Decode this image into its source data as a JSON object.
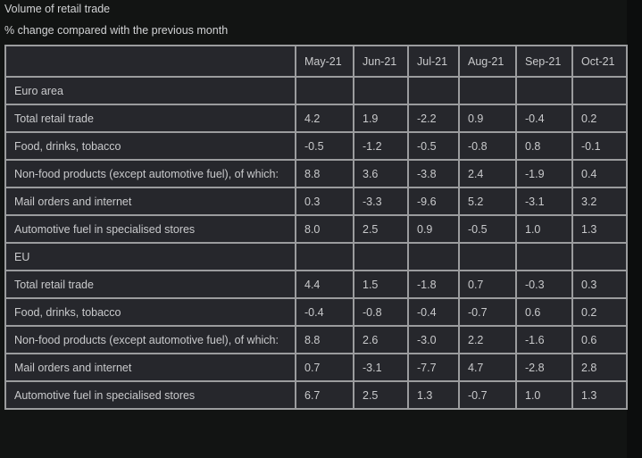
{
  "title": "Volume of retail trade",
  "subtitle": "% change compared with the previous month",
  "table": {
    "columns": [
      "",
      "May-21",
      "Jun-21",
      "Jul-21",
      "Aug-21",
      "Sep-21",
      "Oct-21"
    ],
    "rows": [
      {
        "label": "Euro area",
        "values": [
          "",
          "",
          "",
          "",
          "",
          ""
        ],
        "section": true
      },
      {
        "label": "Total retail trade",
        "values": [
          "4.2",
          "1.9",
          "-2.2",
          "0.9",
          "-0.4",
          "0.2"
        ]
      },
      {
        "label": "Food, drinks, tobacco",
        "values": [
          "-0.5",
          "-1.2",
          "-0.5",
          "-0.8",
          "0.8",
          "-0.1"
        ]
      },
      {
        "label": "Non-food products (except automotive fuel), of which:",
        "values": [
          "8.8",
          "3.6",
          "-3.8",
          "2.4",
          "-1.9",
          "0.4"
        ]
      },
      {
        "label": "Mail orders and internet",
        "values": [
          "0.3",
          "-3.3",
          "-9.6",
          "5.2",
          "-3.1",
          "3.2"
        ]
      },
      {
        "label": "Automotive fuel in specialised stores",
        "values": [
          "8.0",
          "2.5",
          "0.9",
          "-0.5",
          "1.0",
          "1.3"
        ]
      },
      {
        "label": "EU",
        "values": [
          "",
          "",
          "",
          "",
          "",
          ""
        ],
        "section": true
      },
      {
        "label": "Total retail trade",
        "values": [
          "4.4",
          "1.5",
          "-1.8",
          "0.7",
          "-0.3",
          "0.3"
        ]
      },
      {
        "label": "Food, drinks, tobacco",
        "values": [
          "-0.4",
          "-0.8",
          "-0.4",
          "-0.7",
          "0.6",
          "0.2"
        ]
      },
      {
        "label": "Non-food products (except automotive fuel), of which:",
        "values": [
          "8.8",
          "2.6",
          "-3.0",
          "2.2",
          "-1.6",
          "0.6"
        ]
      },
      {
        "label": "Mail orders and internet",
        "values": [
          "0.7",
          "-3.1",
          "-7.7",
          "4.7",
          "-2.8",
          "2.8"
        ]
      },
      {
        "label": "Automotive fuel in specialised stores",
        "values": [
          "6.7",
          "2.5",
          "1.3",
          "-0.7",
          "1.0",
          "1.3"
        ]
      }
    ]
  }
}
